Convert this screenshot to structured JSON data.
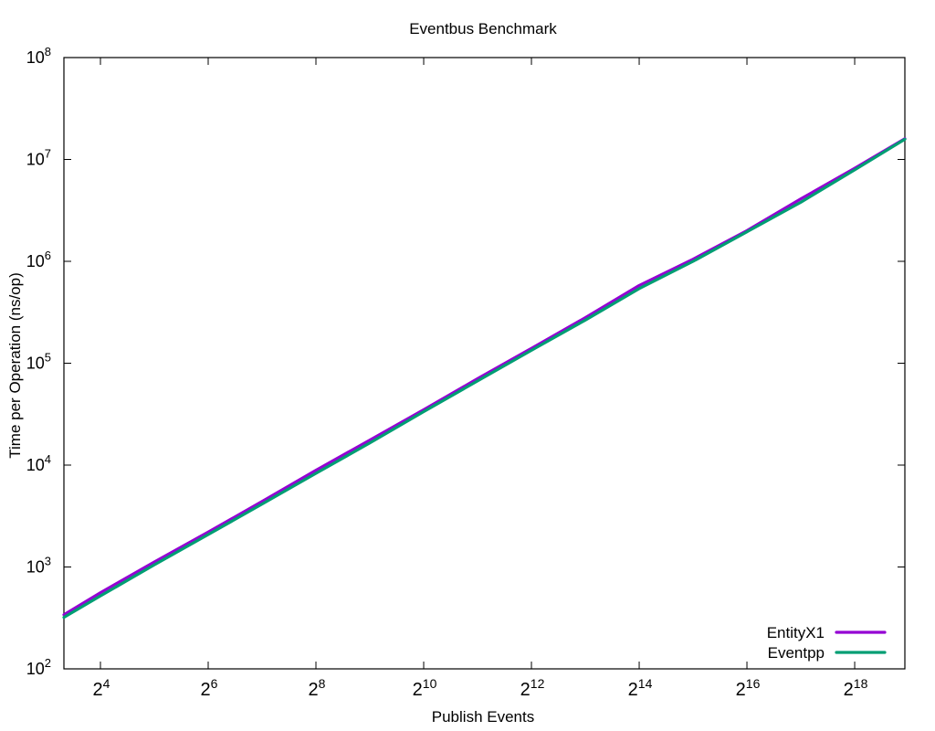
{
  "chart_data": {
    "type": "line",
    "title": "Eventbus Benchmark",
    "xlabel": "Publish Events",
    "ylabel": "Time per Operation (ns/op)",
    "x_scale": "log2",
    "y_scale": "log10",
    "xlim": [
      10,
      500000
    ],
    "ylim": [
      100,
      100000000
    ],
    "x_ticks": [
      {
        "value": 16,
        "base": "2",
        "exp": "4"
      },
      {
        "value": 64,
        "base": "2",
        "exp": "6"
      },
      {
        "value": 256,
        "base": "2",
        "exp": "8"
      },
      {
        "value": 1024,
        "base": "2",
        "exp": "10"
      },
      {
        "value": 4096,
        "base": "2",
        "exp": "12"
      },
      {
        "value": 16384,
        "base": "2",
        "exp": "14"
      },
      {
        "value": 65536,
        "base": "2",
        "exp": "16"
      },
      {
        "value": 262144,
        "base": "2",
        "exp": "18"
      }
    ],
    "y_ticks": [
      {
        "value": 100,
        "base": "10",
        "exp": "2"
      },
      {
        "value": 1000,
        "base": "10",
        "exp": "3"
      },
      {
        "value": 10000,
        "base": "10",
        "exp": "4"
      },
      {
        "value": 100000,
        "base": "10",
        "exp": "5"
      },
      {
        "value": 1000000,
        "base": "10",
        "exp": "6"
      },
      {
        "value": 10000000,
        "base": "10",
        "exp": "7"
      },
      {
        "value": 100000000,
        "base": "10",
        "exp": "8"
      }
    ],
    "grid": false,
    "legend_position": "bottom-right",
    "series": [
      {
        "name": "EntityX1",
        "color": "#9400d3",
        "x": [
          10,
          16,
          32,
          64,
          128,
          256,
          512,
          1024,
          2048,
          4096,
          8192,
          16384,
          32768,
          65536,
          131072,
          262144,
          500000
        ],
        "y": [
          340,
          560,
          1120,
          2200,
          4400,
          8900,
          17600,
          35000,
          70500,
          140000,
          280000,
          580000,
          1050000,
          2000000,
          4100000,
          8200000,
          16000000
        ]
      },
      {
        "name": "Eventpp",
        "color": "#009e73",
        "x": [
          10,
          16,
          32,
          64,
          128,
          256,
          512,
          1024,
          2048,
          4096,
          8192,
          16384,
          32768,
          65536,
          131072,
          262144,
          500000
        ],
        "y": [
          320,
          520,
          1050,
          2080,
          4150,
          8300,
          16500,
          33500,
          67000,
          134000,
          265000,
          540000,
          1000000,
          1950000,
          3800000,
          7900000,
          15800000
        ]
      }
    ]
  }
}
